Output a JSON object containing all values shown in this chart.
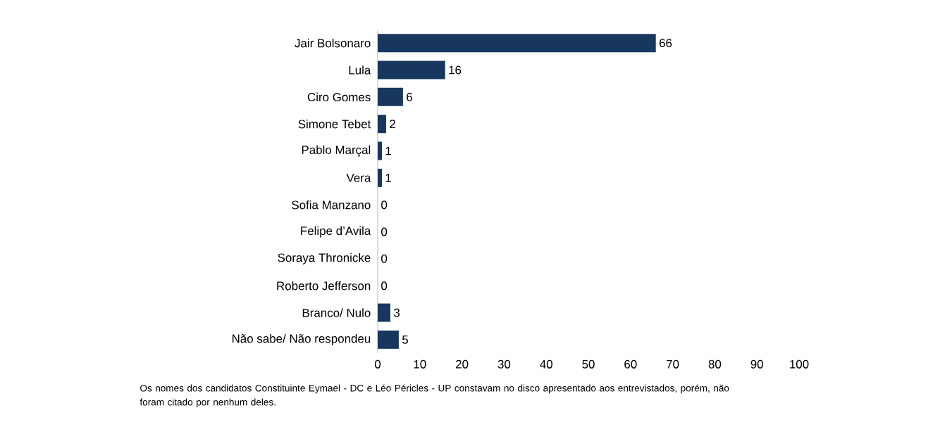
{
  "chart_data": {
    "type": "bar",
    "orientation": "horizontal",
    "categories": [
      "Jair Bolsonaro",
      "Lula",
      "Ciro Gomes",
      "Simone Tebet",
      "Pablo Marçal",
      "Vera",
      "Sofia Manzano",
      "Felipe d’Avila",
      "Soraya Thronicke",
      "Roberto Jefferson",
      "Branco/ Nulo",
      "Não sabe/ Não respondeu"
    ],
    "values": [
      66,
      16,
      6,
      2,
      1,
      1,
      0,
      0,
      0,
      0,
      3,
      5
    ],
    "color": "#17375e",
    "xlim": [
      0,
      100
    ],
    "xticks": [
      0,
      10,
      20,
      30,
      40,
      50,
      60,
      70,
      80,
      90,
      100
    ],
    "data_labels": true,
    "annotations": [
      "Os nomes dos candidatos Constituinte Eymael - DC e Léo Péricles - UP constavam no disco apresentado aos entrevistados, porém, não foram citado por nenhum deles."
    ]
  }
}
